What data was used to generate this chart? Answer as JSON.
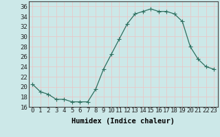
{
  "x": [
    0,
    1,
    2,
    3,
    4,
    5,
    6,
    7,
    8,
    9,
    10,
    11,
    12,
    13,
    14,
    15,
    16,
    17,
    18,
    19,
    20,
    21,
    22,
    23
  ],
  "y": [
    20.5,
    19.0,
    18.5,
    17.5,
    17.5,
    17.0,
    17.0,
    17.0,
    19.5,
    23.5,
    26.5,
    29.5,
    32.5,
    34.5,
    35.0,
    35.5,
    35.0,
    35.0,
    34.5,
    33.0,
    28.0,
    25.5,
    24.0,
    23.5
  ],
  "line_color": "#2d6e5e",
  "marker": "D",
  "marker_size": 2.5,
  "bg_color": "#cce8e8",
  "grid_color": "#e8c8c8",
  "xlabel": "Humidex (Indice chaleur)",
  "ylabel": "",
  "ylim": [
    16,
    37
  ],
  "xlim": [
    -0.5,
    23.5
  ],
  "yticks": [
    16,
    18,
    20,
    22,
    24,
    26,
    28,
    30,
    32,
    34,
    36
  ],
  "xticks": [
    0,
    1,
    2,
    3,
    4,
    5,
    6,
    7,
    8,
    9,
    10,
    11,
    12,
    13,
    14,
    15,
    16,
    17,
    18,
    19,
    20,
    21,
    22,
    23
  ],
  "xtick_labels": [
    "0",
    "1",
    "2",
    "3",
    "4",
    "5",
    "6",
    "7",
    "8",
    "9",
    "10",
    "11",
    "12",
    "13",
    "14",
    "15",
    "16",
    "17",
    "18",
    "19",
    "20",
    "21",
    "22",
    "23"
  ],
  "font_size": 6.5,
  "xlabel_fontsize": 7.5
}
